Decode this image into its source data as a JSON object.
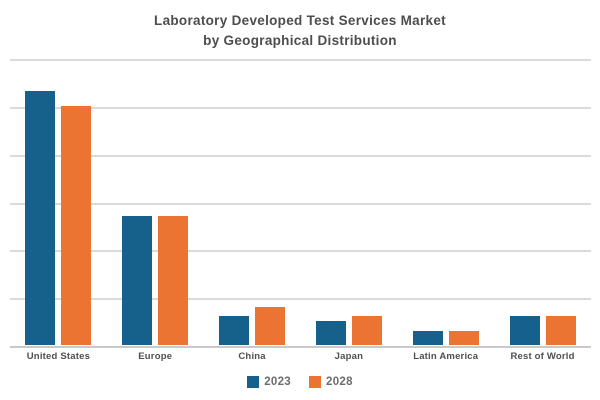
{
  "title": {
    "line1": "Laboratory Developed Test Services Market",
    "line2": "by Geographical Distribution"
  },
  "legend": [
    {
      "label": "2023",
      "color": "#16618C"
    },
    {
      "label": "2028",
      "color": "#EC7433"
    }
  ],
  "colors": {
    "series_2023": "#16618C",
    "series_2028": "#EC7433",
    "gridline": "#dadada",
    "axis_line": "#c9c9c9",
    "title_text": "#4d4d4d",
    "category_text": "#4f4f4f",
    "legend_text": "#6d6d6d",
    "background": "#ffffff"
  },
  "chart_data": {
    "type": "bar",
    "title": "Laboratory Developed Test Services Market by Geographical Distribution",
    "categories": [
      "United States",
      "Europe",
      "China",
      "Japan",
      "Latin America",
      "Rest of World"
    ],
    "series": [
      {
        "name": "2023",
        "color": "#16618C",
        "values": [
          53,
          27,
          6,
          5,
          3,
          6
        ]
      },
      {
        "name": "2028",
        "color": "#EC7433",
        "values": [
          50,
          27,
          8,
          6,
          3,
          6
        ]
      }
    ],
    "xlabel": "",
    "ylabel": "",
    "ylim": [
      0,
      60
    ],
    "gridline_step": 10,
    "grid": "horizontal",
    "y_axis_labels_visible": false,
    "legend_position": "bottom"
  }
}
